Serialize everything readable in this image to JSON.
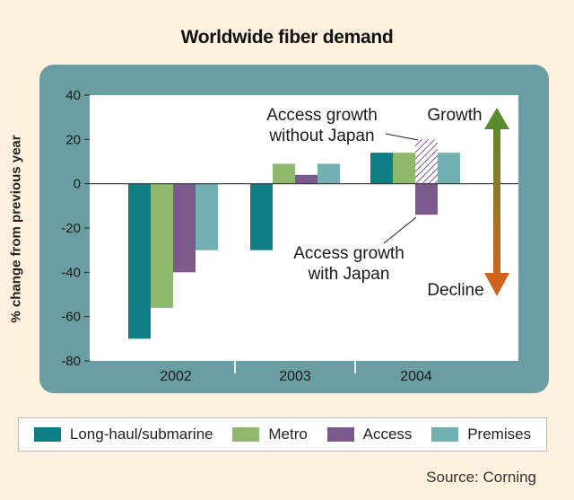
{
  "chart_data": {
    "type": "bar",
    "title": "Worldwide fiber demand",
    "ylabel": "% change from previous year",
    "xlabel": "",
    "ylim": [
      -80,
      40
    ],
    "yticks": [
      40,
      20,
      0,
      -20,
      -40,
      -60,
      -80
    ],
    "categories": [
      "2002",
      "2003",
      "2004"
    ],
    "series": [
      {
        "name": "Long-haul/submarine",
        "color": "#0f7f85",
        "values": [
          -70,
          -30,
          14
        ]
      },
      {
        "name": "Metro",
        "color": "#8fba6e",
        "values": [
          -56,
          9,
          14
        ]
      },
      {
        "name": "Access",
        "color": "#7c5b8c",
        "values": [
          -40,
          4,
          -14
        ]
      },
      {
        "name": "Premises",
        "color": "#72b0b3",
        "values": [
          -30,
          9,
          14
        ]
      }
    ],
    "extra_bars": [
      {
        "category": "2004",
        "series": "Access",
        "value": 20,
        "pattern": "hatched",
        "label": "Access growth without Japan"
      }
    ],
    "annotations": {
      "without_japan_line1": "Access growth",
      "without_japan_line2": "without Japan",
      "with_japan_line1": "Access growth",
      "with_japan_line2": "with Japan",
      "growth": "Growth",
      "decline": "Decline"
    },
    "arrow_colors": {
      "top": "#5a8a2a",
      "bottom": "#d0621e"
    },
    "legend_placement": "bottom",
    "grid": false
  },
  "source": "Source: Corning"
}
